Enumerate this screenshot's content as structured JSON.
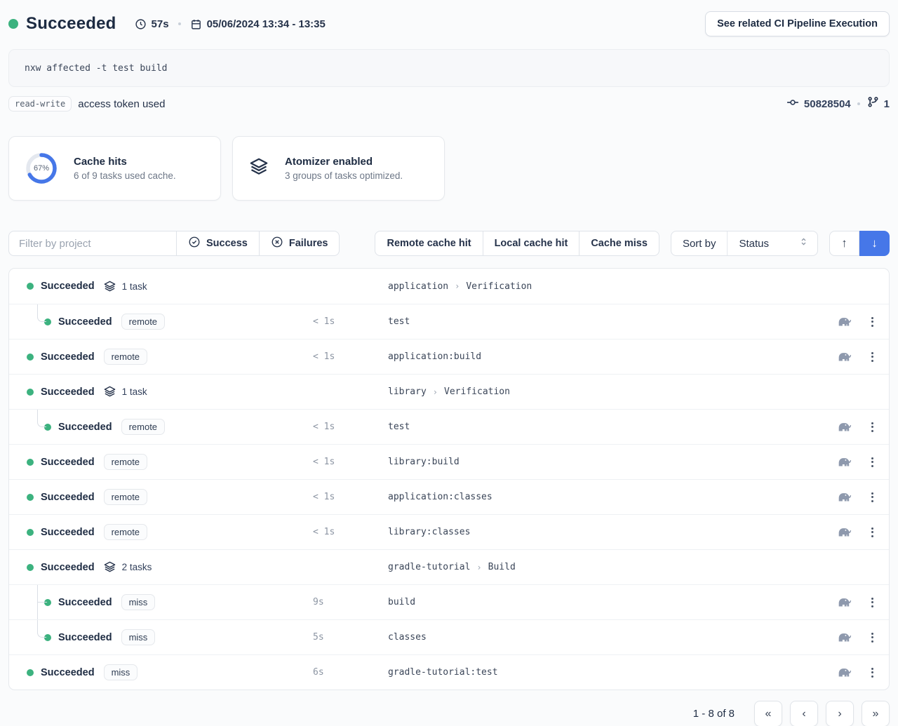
{
  "colors": {
    "success_green": "#3cb27f",
    "accent_blue": "#4677e8",
    "text_primary": "#1d2b42",
    "text_secondary": "#6d7787"
  },
  "header": {
    "status": "Succeeded",
    "duration": "57s",
    "date_range": "05/06/2024 13:34 - 13:35",
    "related_button": "See related CI Pipeline Execution"
  },
  "command": {
    "text": "nxw affected -t test build"
  },
  "token_row": {
    "badge": "read-write",
    "label": "access token used",
    "commit": "50828504",
    "branch_count": "1"
  },
  "cards": [
    {
      "title": "Cache hits",
      "subtitle": "6 of 9 tasks used cache.",
      "percent_label": "67%",
      "percent_value": 67
    },
    {
      "title": "Atomizer enabled",
      "subtitle": "3 groups of tasks optimized."
    }
  ],
  "filters": {
    "input_placeholder": "Filter by project",
    "success_label": "Success",
    "failures_label": "Failures",
    "cache_buttons": [
      "Remote cache hit",
      "Local cache hit",
      "Cache miss"
    ],
    "sort_label": "Sort by",
    "sort_value": "Status"
  },
  "table": {
    "rows": [
      {
        "type": "group",
        "status": "Succeeded",
        "count": "1 task",
        "project": "application",
        "category": "Verification"
      },
      {
        "type": "task",
        "indent": true,
        "connector": "elbow",
        "status": "Succeeded",
        "badge": "remote",
        "duration": "< 1s",
        "target": "test"
      },
      {
        "type": "task",
        "indent": false,
        "status": "Succeeded",
        "badge": "remote",
        "duration": "< 1s",
        "target": "application:build"
      },
      {
        "type": "group",
        "status": "Succeeded",
        "count": "1 task",
        "project": "library",
        "category": "Verification"
      },
      {
        "type": "task",
        "indent": true,
        "connector": "elbow",
        "status": "Succeeded",
        "badge": "remote",
        "duration": "< 1s",
        "target": "test"
      },
      {
        "type": "task",
        "indent": false,
        "status": "Succeeded",
        "badge": "remote",
        "duration": "< 1s",
        "target": "library:build"
      },
      {
        "type": "task",
        "indent": false,
        "status": "Succeeded",
        "badge": "remote",
        "duration": "< 1s",
        "target": "application:classes"
      },
      {
        "type": "task",
        "indent": false,
        "status": "Succeeded",
        "badge": "remote",
        "duration": "< 1s",
        "target": "library:classes"
      },
      {
        "type": "group",
        "status": "Succeeded",
        "count": "2 tasks",
        "project": "gradle-tutorial",
        "category": "Build"
      },
      {
        "type": "task",
        "indent": true,
        "connector": "tee",
        "status": "Succeeded",
        "badge": "miss",
        "duration": "9s",
        "target": "build"
      },
      {
        "type": "task",
        "indent": true,
        "connector": "elbow",
        "status": "Succeeded",
        "badge": "miss",
        "duration": "5s",
        "target": "classes"
      },
      {
        "type": "task",
        "indent": false,
        "status": "Succeeded",
        "badge": "miss",
        "duration": "6s",
        "target": "gradle-tutorial:test"
      }
    ]
  },
  "pagination": {
    "range": "1 - 8 of 8",
    "first": "«",
    "prev": "‹",
    "next": "›",
    "last": "»"
  }
}
